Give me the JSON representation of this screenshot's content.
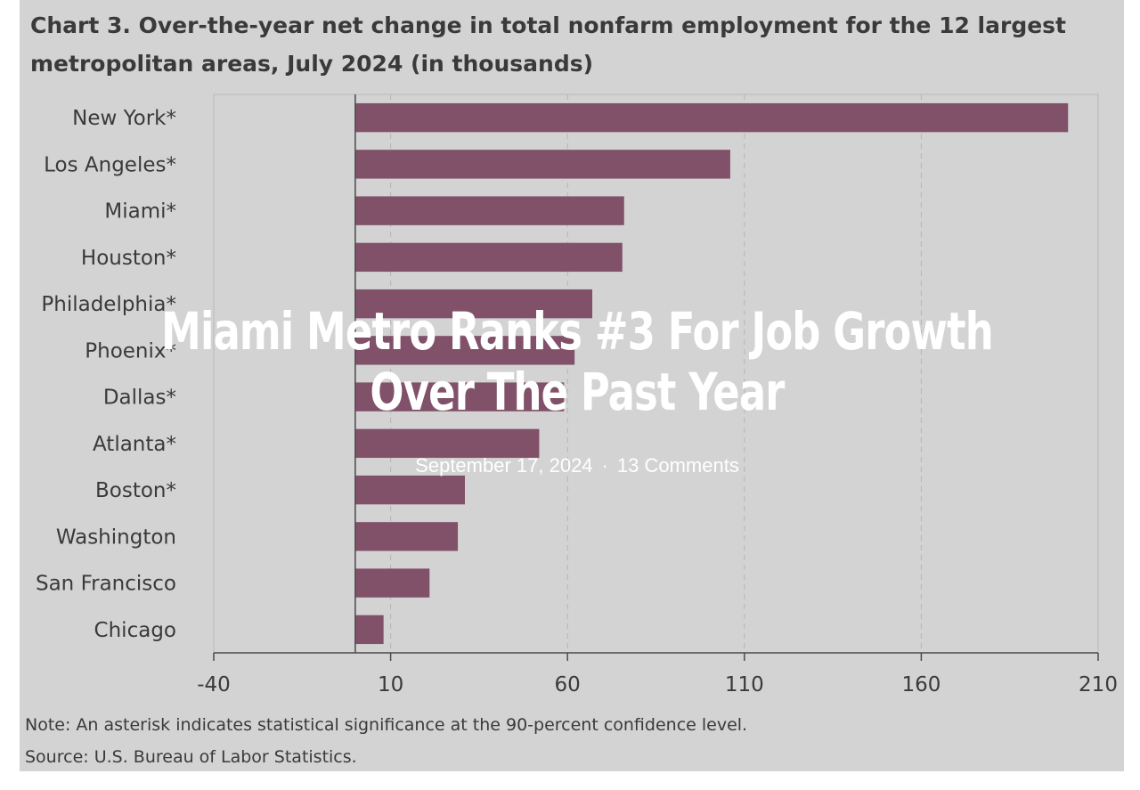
{
  "post": {
    "title": "Miami Metro Ranks #3 For Job Growth Over The Past Year",
    "date": "September 17, 2024",
    "separator": "·",
    "comments": "13 Comments"
  },
  "chart_data": {
    "type": "bar",
    "orientation": "horizontal",
    "title_line1": "Chart 3. Over-the-year net change in total nonfarm employment for the 12 largest",
    "title_line2": "metropolitan areas, July 2024 (in thousands)",
    "categories": [
      "New York*",
      "Los Angeles*",
      "Miami*",
      "Houston*",
      "Philadelphia*",
      "Phoenix*",
      "Dallas*",
      "Atlanta*",
      "Boston*",
      "Washington",
      "San Francisco",
      "Chicago"
    ],
    "values": [
      201.5,
      106,
      76,
      75.5,
      67,
      62,
      59,
      52,
      31,
      29,
      21,
      8
    ],
    "xlim": [
      -40,
      210
    ],
    "xticks": [
      -40,
      10,
      60,
      110,
      160,
      210
    ],
    "grid": "vertical dashed",
    "bar_color": "#805169",
    "note": "Note: An asterisk indicates statistical significance at the 90-percent confidence level.",
    "source": "Source: U.S. Bureau of Labor Statistics."
  }
}
